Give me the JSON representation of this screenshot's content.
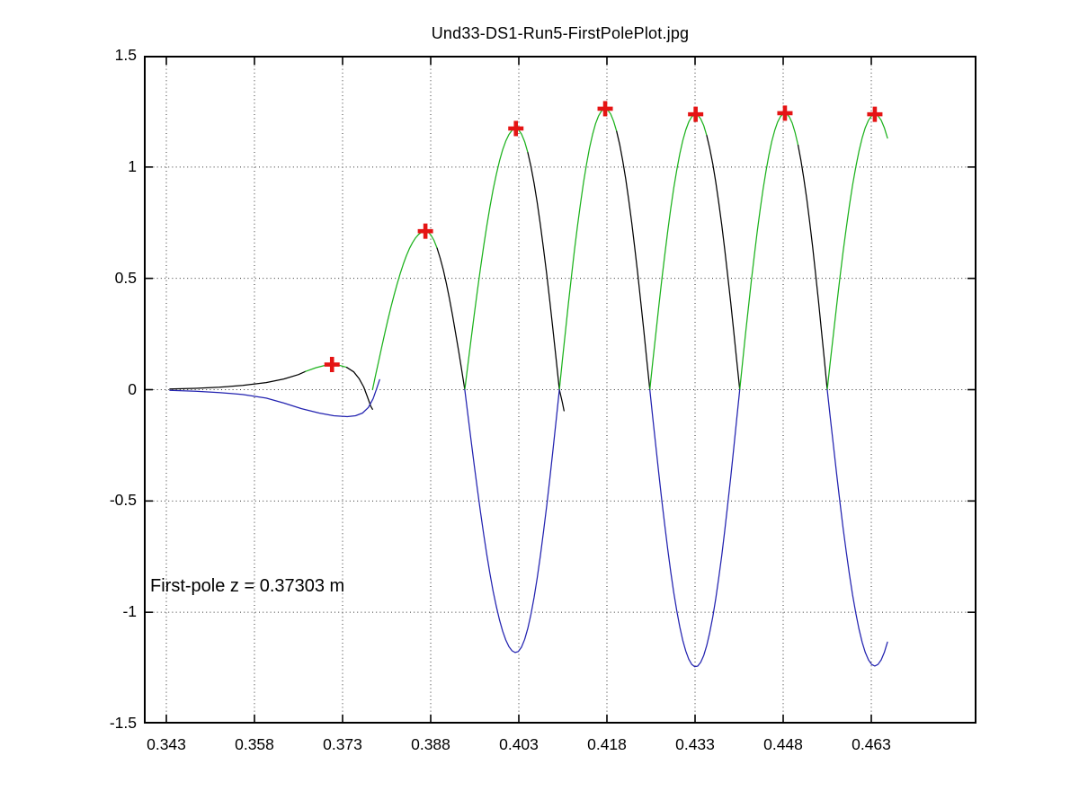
{
  "figure": {
    "title": "Und33-DS1-Run5-FirstPolePlot.jpg",
    "annotation": "First-pole z = 0.37303 m"
  },
  "chart_data": {
    "type": "line",
    "title": "Und33-DS1-Run5-FirstPolePlot.jpg",
    "xlabel": "",
    "ylabel": "",
    "xlim": [
      0.3392,
      0.4809
    ],
    "ylim": [
      -1.5,
      1.5
    ],
    "grid": "dotted",
    "legend": "none",
    "x_ticks": {
      "values": [
        0.343,
        0.358,
        0.373,
        0.388,
        0.403,
        0.418,
        0.433,
        0.448,
        0.463
      ],
      "labels": [
        "0.343",
        "0.358",
        "0.373",
        "0.388",
        "0.403",
        "0.418",
        "0.433",
        "0.448",
        "0.463"
      ]
    },
    "y_ticks": {
      "values": [
        -1.5,
        -1,
        -0.5,
        0,
        0.5,
        1,
        1.5
      ],
      "labels": [
        "-1.5",
        "-1",
        "-0.5",
        "0",
        "0.5",
        "1",
        "1.5"
      ]
    },
    "first_pole_z_m": 0.37303,
    "annotation_text": "First-pole z = 0.37303 m",
    "annotation_anchor": {
      "z": 0.3405,
      "v": -0.886
    },
    "colors": {
      "rise_green": "#1cb21c",
      "fall_black": "#000000",
      "negative_blue": "#2222b0",
      "marker_red": "#e51414",
      "grid": "#333333",
      "axis": "#000000",
      "background": "#ffffff"
    },
    "pole_markers": [
      [
        0.3712,
        0.113
      ],
      [
        0.3871,
        0.712
      ],
      [
        0.4025,
        1.173
      ],
      [
        0.4177,
        1.262
      ],
      [
        0.4331,
        1.237
      ],
      [
        0.4483,
        1.242
      ],
      [
        0.4636,
        1.237
      ]
    ],
    "segments": [
      {
        "style": "pts",
        "color": "black",
        "pts": [
          [
            0.3436,
            0.003
          ],
          [
            0.348,
            0.006
          ],
          [
            0.352,
            0.011
          ],
          [
            0.356,
            0.019
          ],
          [
            0.36,
            0.032
          ],
          [
            0.363,
            0.048
          ],
          [
            0.3655,
            0.068
          ],
          [
            0.3667,
            0.082
          ]
        ]
      },
      {
        "style": "pts",
        "color": "green",
        "pts": [
          [
            0.3667,
            0.082
          ],
          [
            0.3685,
            0.099
          ],
          [
            0.37,
            0.109
          ],
          [
            0.3712,
            0.113
          ],
          [
            0.3724,
            0.11
          ],
          [
            0.3737,
            0.1
          ]
        ]
      },
      {
        "style": "pts",
        "color": "black",
        "pts": [
          [
            0.3737,
            0.1
          ],
          [
            0.3749,
            0.08
          ],
          [
            0.3758,
            0.05
          ],
          [
            0.3766,
            0.012
          ],
          [
            0.3772,
            -0.03
          ],
          [
            0.3778,
            -0.075
          ],
          [
            0.3781,
            -0.088
          ]
        ]
      },
      {
        "style": "pts",
        "color": "blue",
        "pts": [
          [
            0.3436,
            -0.003
          ],
          [
            0.348,
            -0.007
          ],
          [
            0.352,
            -0.013
          ],
          [
            0.356,
            -0.022
          ],
          [
            0.36,
            -0.038
          ],
          [
            0.363,
            -0.06
          ],
          [
            0.366,
            -0.085
          ],
          [
            0.369,
            -0.105
          ],
          [
            0.3715,
            -0.117
          ],
          [
            0.3738,
            -0.121
          ],
          [
            0.3752,
            -0.117
          ],
          [
            0.3764,
            -0.105
          ],
          [
            0.3774,
            -0.08
          ],
          [
            0.3782,
            -0.04
          ],
          [
            0.3788,
            0.005
          ],
          [
            0.3793,
            0.045
          ]
        ]
      },
      {
        "style": "hump",
        "z0": 0.3781,
        "z1": 0.3938,
        "A": 0.712,
        "pt": 0.573
      },
      {
        "style": "hump",
        "z0": 0.3938,
        "z1": 0.4099,
        "A": 1.173,
        "pt": 0.54
      },
      {
        "style": "pts",
        "color": "black",
        "pts": [
          [
            0.4099,
            0.0
          ],
          [
            0.4104,
            -0.055
          ],
          [
            0.4107,
            -0.095
          ]
        ]
      },
      {
        "style": "hump",
        "z0": 0.4099,
        "z1": 0.4253,
        "A": 1.262,
        "pt": 0.506
      },
      {
        "style": "hump",
        "z0": 0.4253,
        "z1": 0.4406,
        "A": 1.237,
        "pt": 0.51
      },
      {
        "style": "hump",
        "z0": 0.4406,
        "z1": 0.4555,
        "A": 1.242,
        "pt": 0.517
      },
      {
        "style": "hump",
        "z0": 0.4555,
        "z1": 0.4717,
        "A": 1.237,
        "pt": 0.5,
        "cut": 0.4659
      },
      {
        "style": "dip",
        "z0": 0.3938,
        "z1": 0.4099,
        "A": -1.181,
        "pt": 0.54
      },
      {
        "style": "dip",
        "z0": 0.4253,
        "z1": 0.4406,
        "A": -1.245,
        "pt": 0.51
      },
      {
        "style": "dip",
        "z0": 0.4555,
        "z1": 0.4717,
        "A": -1.241,
        "pt": 0.5,
        "cut": 0.4659
      }
    ]
  }
}
